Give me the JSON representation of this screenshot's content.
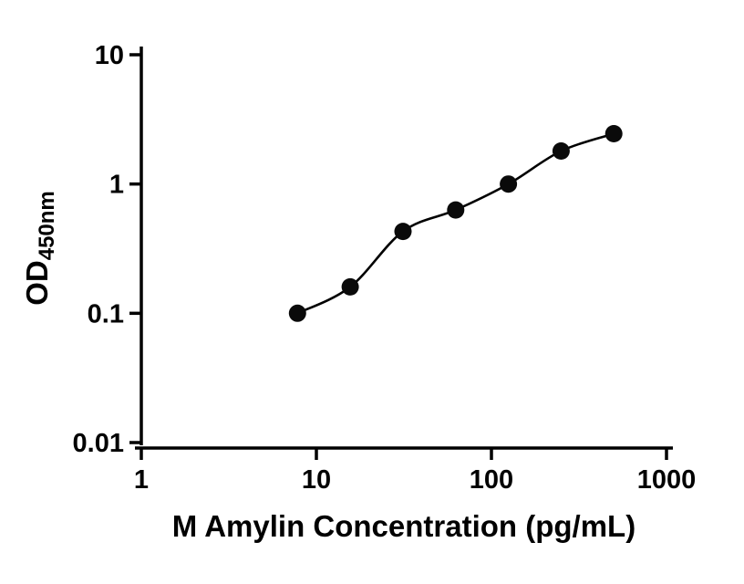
{
  "figure": {
    "background": "#ffffff"
  },
  "chart_data": {
    "type": "scatter",
    "series_name": "standard-curve",
    "x": [
      7.8,
      15.6,
      31.25,
      62.5,
      125,
      250,
      500
    ],
    "y": [
      0.1,
      0.16,
      0.43,
      0.63,
      1.0,
      1.8,
      2.45
    ],
    "fit_line": true,
    "title": "",
    "xlabel": "M Amylin Concentration (pg/mL)",
    "ylabel": "OD450nm",
    "ylabel_main": "OD",
    "ylabel_sub": "450nm",
    "xscale": "log",
    "yscale": "log",
    "xlim": [
      1,
      1000
    ],
    "ylim": [
      0.01,
      10
    ],
    "x_ticks": [
      1,
      10,
      100,
      1000
    ],
    "x_tick_labels": [
      "1",
      "10",
      "100",
      "1000"
    ],
    "y_ticks": [
      10,
      1,
      0.1,
      0.01
    ],
    "y_tick_labels": [
      "10",
      "1",
      "0.1",
      "0.01"
    ],
    "grid": false,
    "legend": false,
    "marker": "circle",
    "marker_color": "#0a0a0a",
    "line_color": "#000000",
    "axis_color": "#000000"
  }
}
